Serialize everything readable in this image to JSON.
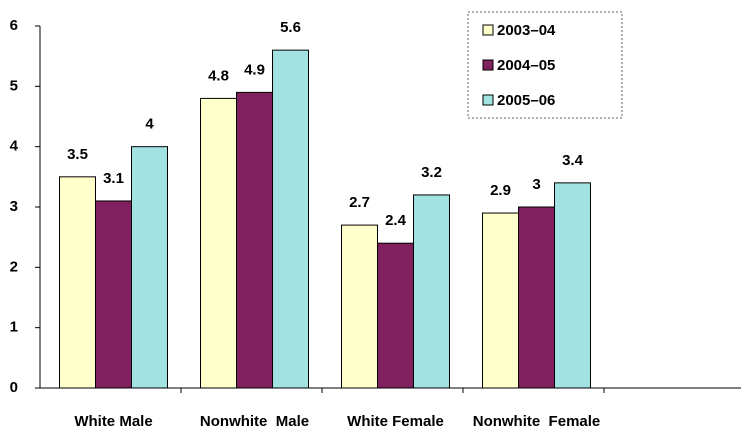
{
  "chart_data": {
    "type": "bar",
    "categories": [
      "White Male",
      "Nonwhite  Male",
      "White Female",
      "Nonwhite  Female"
    ],
    "series": [
      {
        "name": "2003–04",
        "color": "#ffffcc",
        "values": [
          3.5,
          4.8,
          2.7,
          2.9
        ]
      },
      {
        "name": "2004–05",
        "color": "#80205e",
        "values": [
          3.1,
          4.9,
          2.4,
          3
        ]
      },
      {
        "name": "2005–06",
        "color": "#a2e2e2",
        "values": [
          4,
          5.6,
          3.2,
          3.4
        ]
      }
    ],
    "ylim": [
      0,
      6
    ],
    "yticks": [
      0,
      1,
      2,
      3,
      4,
      5,
      6
    ],
    "grid": false,
    "legend": "top-right"
  }
}
